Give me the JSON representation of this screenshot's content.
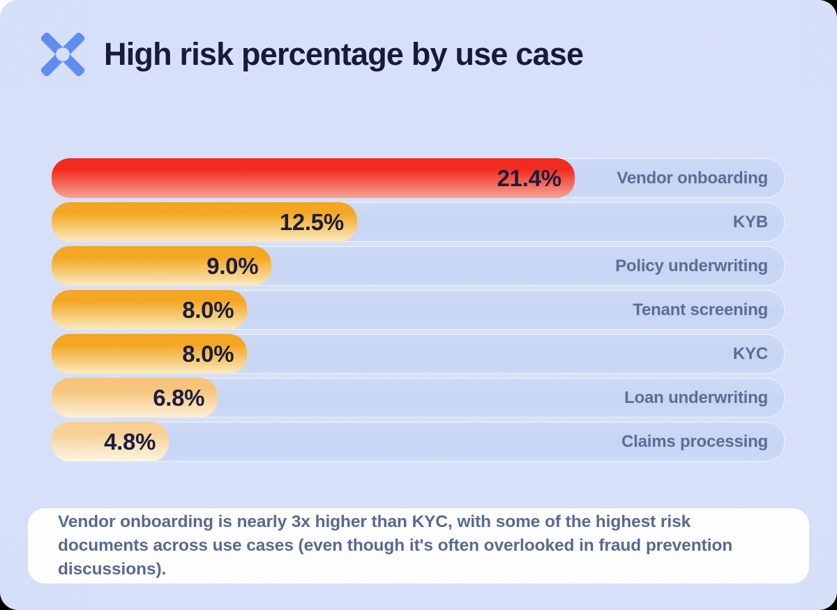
{
  "card": {
    "background": "#D8E1FB",
    "outside_background": "#000000",
    "outside_top_left_patch": "#FFFFFF"
  },
  "header": {
    "title": "High risk percentage by use case",
    "title_color": "#111735",
    "logo_icon": "x-logo",
    "logo_color": "#5C8CF2"
  },
  "chart_data": {
    "type": "bar",
    "orientation": "horizontal",
    "title": "High risk percentage by use case",
    "categories": [
      "Vendor onboarding",
      "KYB",
      "Policy underwriting",
      "Tenant screening",
      "KYC",
      "Loan underwriting",
      "Claims processing"
    ],
    "values": [
      21.4,
      12.5,
      9.0,
      8.0,
      8.0,
      6.8,
      4.8
    ],
    "value_labels": [
      "21.4%",
      "12.5%",
      "9.0%",
      "8.0%",
      "8.0%",
      "6.8%",
      "4.8%"
    ],
    "xlim": [
      0,
      30
    ],
    "grid": false,
    "legend": false,
    "bar_gradients": [
      [
        "#F4271A",
        "#F7A494"
      ],
      [
        "#F6A61E",
        "#FBECC3"
      ],
      [
        "#F6A61E",
        "#FBECC3"
      ],
      [
        "#F6A61E",
        "#FBECC3"
      ],
      [
        "#F6A61E",
        "#FBECC3"
      ],
      [
        "#F8C478",
        "#FDF2DA"
      ],
      [
        "#F9D194",
        "#FEF7E6"
      ]
    ],
    "track_color": "#C7D6F6",
    "value_text_color": "#15193B",
    "category_text_color": "#5A6A92"
  },
  "note": {
    "text": "Vendor onboarding is nearly 3x higher than KYC, with some of the highest risk documents across use cases (even though it's often overlooked in fraud prevention discussions)."
  }
}
